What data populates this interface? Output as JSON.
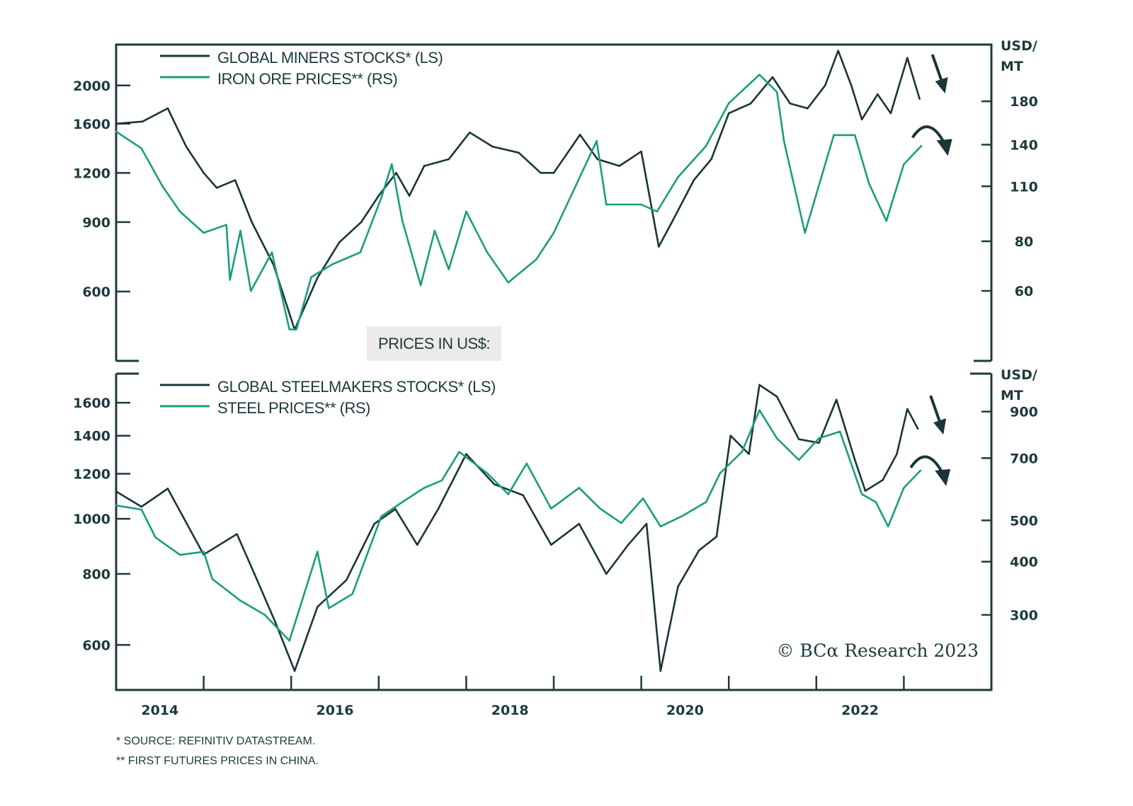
{
  "colors": {
    "dark": "#1b3538",
    "green": "#1a9e7a",
    "axis": "#1d3a3c",
    "box": "#ebebea"
  },
  "x_axis": {
    "range": [
      2014,
      2024
    ],
    "labels": [
      "2014",
      "2016",
      "2018",
      "2020",
      "2022"
    ],
    "label_years": [
      2014.5,
      2016.5,
      2018.5,
      2020.5,
      2022.5
    ],
    "tick_years": [
      2015,
      2016,
      2017,
      2018,
      2019,
      2020,
      2021,
      2022,
      2023
    ]
  },
  "box_label": "PRICES IN US$:",
  "credit": "© BCα Research 2023",
  "footnotes": [
    "*  SOURCE: REFINITIV DATASTREAM.",
    "** FIRST FUTURES PRICES IN CHINA."
  ],
  "chart_data": [
    {
      "type": "line",
      "panel": "top",
      "scale": "log",
      "left_unit": "",
      "right_unit": [
        "USD/",
        "MT"
      ],
      "ylim_left": [
        400,
        2540
      ],
      "ylim_right": [
        40,
        250
      ],
      "left_ticks": [
        600,
        900,
        1200,
        1600,
        2000
      ],
      "right_ticks": [
        60,
        80,
        110,
        140,
        180
      ],
      "legend": [
        "GLOBAL MINERS STOCKS* (LS)",
        "IRON ORE PRICES** (RS)"
      ],
      "series": [
        {
          "name": "GLOBAL MINERS STOCKS* (LS)",
          "axis": "left",
          "color": "dark",
          "x": [
            2014.0,
            2014.3,
            2014.59,
            2014.8,
            2015.0,
            2015.15,
            2015.36,
            2015.55,
            2015.8,
            2016.04,
            2016.3,
            2016.55,
            2016.8,
            2017.0,
            2017.2,
            2017.35,
            2017.52,
            2017.8,
            2018.04,
            2018.3,
            2018.6,
            2018.85,
            2019.0,
            2019.3,
            2019.5,
            2019.75,
            2020.0,
            2020.2,
            2020.35,
            2020.6,
            2020.8,
            2021.0,
            2021.25,
            2021.5,
            2021.7,
            2021.9,
            2022.1,
            2022.25,
            2022.4,
            2022.52,
            2022.7,
            2022.85,
            2023.04,
            2023.18
          ],
          "y": [
            1600,
            1620,
            1750,
            1400,
            1200,
            1100,
            1150,
            900,
            700,
            480,
            650,
            800,
            900,
            1050,
            1200,
            1050,
            1250,
            1300,
            1520,
            1400,
            1350,
            1200,
            1200,
            1500,
            1300,
            1250,
            1360,
            780,
            900,
            1150,
            1300,
            1700,
            1800,
            2100,
            1800,
            1750,
            2000,
            2450,
            2000,
            1640,
            1900,
            1700,
            2350,
            1850
          ]
        },
        {
          "name": "IRON ORE PRICES** (RS)",
          "axis": "right",
          "color": "green",
          "x": [
            2014.0,
            2014.29,
            2014.53,
            2014.73,
            2015.0,
            2015.26,
            2015.3,
            2015.42,
            2015.54,
            2015.78,
            2015.98,
            2016.06,
            2016.23,
            2016.47,
            2016.79,
            2017.03,
            2017.15,
            2017.27,
            2017.48,
            2017.64,
            2017.8,
            2018.0,
            2018.24,
            2018.48,
            2018.8,
            2019.0,
            2019.49,
            2019.6,
            2020.0,
            2020.18,
            2020.42,
            2020.74,
            2021.0,
            2021.35,
            2021.55,
            2021.63,
            2021.87,
            2022.2,
            2022.44,
            2022.6,
            2022.8,
            2023.0,
            2023.2
          ],
          "y": [
            151,
            137,
            110,
            95,
            84,
            88,
            64,
            85,
            60,
            75,
            48,
            48,
            65,
            70,
            75,
            103,
            125,
            90,
            62,
            85,
            68,
            95,
            75,
            63,
            72,
            84,
            143,
            99,
            99,
            95,
            116,
            139,
            178,
            210,
            190,
            143,
            84,
            148,
            148,
            112,
            90,
            125,
            139
          ]
        }
      ],
      "annotations": [
        "down-arrow",
        "curved-down-arrow"
      ]
    },
    {
      "type": "line",
      "panel": "bottom",
      "scale": "log",
      "right_unit": [
        "USD/",
        "MT"
      ],
      "ylim_left": [
        500,
        1800
      ],
      "ylim_right": [
        200,
        1105
      ],
      "left_ticks": [
        600,
        800,
        1000,
        1200,
        1400,
        1600
      ],
      "right_ticks": [
        300,
        400,
        500,
        700,
        900
      ],
      "legend": [
        "GLOBAL STEELMAKERS STOCKS* (LS)",
        "STEEL PRICES** (RS)"
      ],
      "series": [
        {
          "name": "GLOBAL STEELMAKERS STOCKS* (LS)",
          "axis": "left",
          "color": "dark",
          "x": [
            2014.0,
            2014.29,
            2014.59,
            2014.8,
            2015.0,
            2015.38,
            2015.58,
            2015.82,
            2016.04,
            2016.3,
            2016.63,
            2016.95,
            2017.19,
            2017.44,
            2017.68,
            2018.0,
            2018.32,
            2018.65,
            2018.97,
            2019.29,
            2019.6,
            2019.85,
            2020.06,
            2020.22,
            2020.42,
            2020.66,
            2020.86,
            2021.02,
            2021.23,
            2021.35,
            2021.55,
            2021.8,
            2022.03,
            2022.23,
            2022.44,
            2022.56,
            2022.76,
            2022.92,
            2023.04,
            2023.16
          ],
          "y": [
            1117,
            1050,
            1130,
            985,
            865,
            940,
            800,
            657,
            540,
            700,
            780,
            980,
            1040,
            900,
            1040,
            1300,
            1150,
            1100,
            900,
            980,
            800,
            900,
            980,
            540,
            760,
            880,
            930,
            1400,
            1300,
            1720,
            1640,
            1380,
            1360,
            1620,
            1270,
            1120,
            1170,
            1300,
            1560,
            1440
          ]
        },
        {
          "name": "STEEL PRICES** (RS)",
          "axis": "right",
          "color": "green",
          "x": [
            2014.0,
            2014.29,
            2014.45,
            2014.73,
            2015.0,
            2015.1,
            2015.42,
            2015.7,
            2015.98,
            2016.3,
            2016.43,
            2016.7,
            2017.03,
            2017.27,
            2017.52,
            2017.72,
            2017.92,
            2018.24,
            2018.48,
            2018.69,
            2018.97,
            2019.29,
            2019.53,
            2019.77,
            2020.02,
            2020.22,
            2020.46,
            2020.74,
            2020.9,
            2021.15,
            2021.35,
            2021.55,
            2021.8,
            2022.03,
            2022.27,
            2022.52,
            2022.68,
            2022.82,
            2023.0,
            2023.19
          ],
          "y": [
            542,
            530,
            456,
            415,
            422,
            364,
            324,
            300,
            261,
            422,
            311,
            336,
            511,
            552,
            596,
            620,
            724,
            645,
            576,
            680,
            533,
            596,
            533,
            493,
            563,
            484,
            511,
            552,
            645,
            724,
            907,
            779,
            693,
            779,
            808,
            576,
            552,
            484,
            596,
            655
          ]
        }
      ],
      "annotations": [
        "down-arrow",
        "curved-down-arrow"
      ]
    }
  ]
}
